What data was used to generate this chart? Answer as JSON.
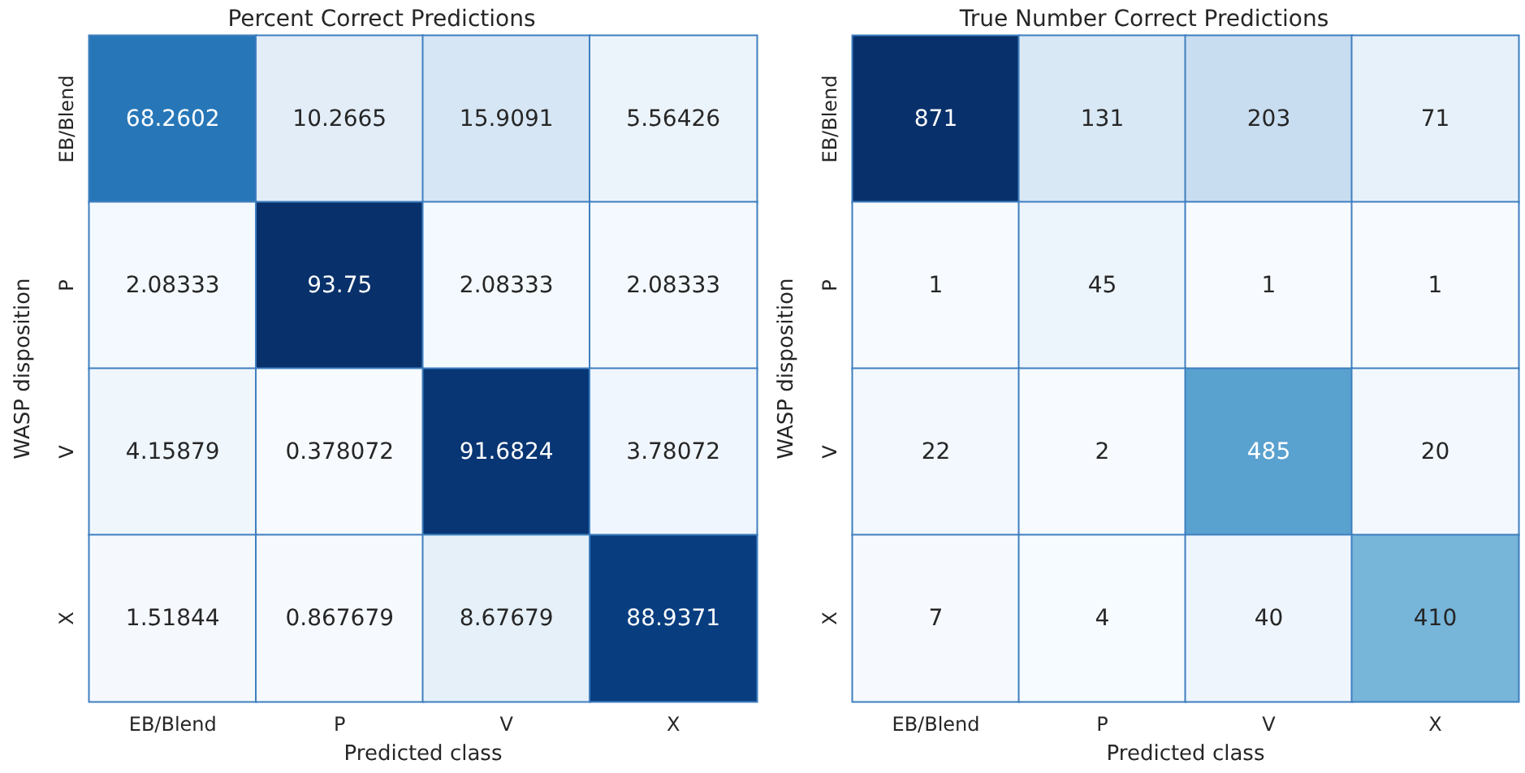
{
  "chart_data": [
    {
      "type": "heatmap",
      "title": "Percent Correct Predictions",
      "xlabel": "Predicted class",
      "ylabel": "WASP disposition",
      "categories": [
        "EB/Blend",
        "P",
        "V",
        "X"
      ],
      "y_categories": [
        "EB/Blend",
        "P",
        "V",
        "X"
      ],
      "data_labels": true,
      "cells": [
        [
          68.2602,
          10.2665,
          15.9091,
          5.56426
        ],
        [
          2.08333,
          93.75,
          2.08333,
          2.08333
        ],
        [
          4.15879,
          0.378072,
          91.6824,
          3.78072
        ],
        [
          1.51844,
          0.867679,
          8.67679,
          88.9371
        ]
      ]
    },
    {
      "type": "heatmap",
      "title": "True Number Correct Predictions",
      "xlabel": "Predicted class",
      "ylabel": "WASP disposition",
      "categories": [
        "EB/Blend",
        "P",
        "V",
        "X"
      ],
      "y_categories": [
        "EB/Blend",
        "P",
        "V",
        "X"
      ],
      "data_labels": true,
      "cells": [
        [
          871,
          131,
          203,
          71
        ],
        [
          1,
          45,
          1,
          1
        ],
        [
          22,
          2,
          485,
          20
        ],
        [
          7,
          4,
          40,
          410
        ]
      ]
    }
  ]
}
